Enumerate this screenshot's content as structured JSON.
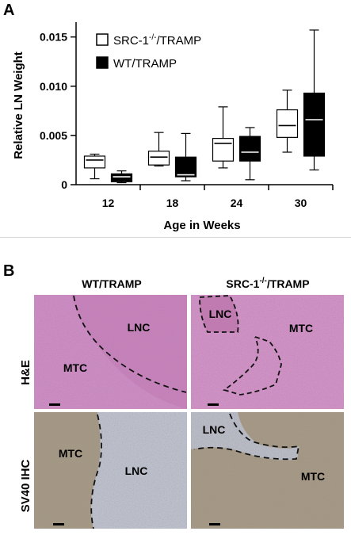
{
  "panel_a": {
    "letter": "A",
    "chart_data": {
      "type": "box",
      "title": "",
      "xlabel": "Age in Weeks",
      "ylabel": "Relative LN Weight",
      "categories": [
        "12",
        "18",
        "24",
        "30"
      ],
      "ylim": [
        0,
        0.0165
      ],
      "yticks": [
        "0",
        "0.005",
        "0.010",
        "0.015"
      ],
      "ytick_values": [
        0,
        0.005,
        0.01,
        0.015
      ],
      "grid": false,
      "legend_position": "top-left",
      "series": [
        {
          "name": "SRC-1-/-/TRAMP",
          "fill": "#ffffff",
          "median_color": "#000000",
          "boxes": [
            {
              "min": 0.0006,
              "q1": 0.0017,
              "median": 0.0025,
              "q3": 0.0029,
              "max": 0.0031
            },
            {
              "min": 0.0019,
              "q1": 0.002,
              "median": 0.0028,
              "q3": 0.0034,
              "max": 0.0053
            },
            {
              "min": 0.0017,
              "q1": 0.0024,
              "median": 0.0042,
              "q3": 0.0047,
              "max": 0.0079
            },
            {
              "min": 0.0033,
              "q1": 0.0048,
              "median": 0.006,
              "q3": 0.0076,
              "max": 0.0096
            }
          ]
        },
        {
          "name": "WT/TRAMP",
          "fill": "#000000",
          "median_color": "#ffffff",
          "boxes": [
            {
              "min": 0.0002,
              "q1": 0.0003,
              "median": 0.0008,
              "q3": 0.0011,
              "max": 0.0014
            },
            {
              "min": 0.0004,
              "q1": 0.0008,
              "median": 0.001,
              "q3": 0.0028,
              "max": 0.0052
            },
            {
              "min": 0.0005,
              "q1": 0.0024,
              "median": 0.0033,
              "q3": 0.0049,
              "max": 0.0058
            },
            {
              "min": 0.0015,
              "q1": 0.0029,
              "median": 0.0066,
              "q3": 0.0093,
              "max": 0.0157
            }
          ]
        }
      ]
    }
  },
  "panel_b": {
    "letter": "B",
    "column_titles": [
      "WT/TRAMP",
      "SRC-1-/-/TRAMP"
    ],
    "row_labels": [
      "H&E",
      "SV40 IHC"
    ],
    "region_labels": {
      "he_wt_lnc": "LNC",
      "he_wt_mtc": "MTC",
      "he_src_lnc": "LNC",
      "he_src_mtc": "MTC",
      "ihc_wt_mtc": "MTC",
      "ihc_wt_lnc": "LNC",
      "ihc_src_lnc": "LNC",
      "ihc_src_mtc": "MTC"
    },
    "colors": {
      "he_tissue": "#c98bbd",
      "ihc_mtc": "#a09583",
      "ihc_lnc": "#b9bdcb"
    }
  }
}
